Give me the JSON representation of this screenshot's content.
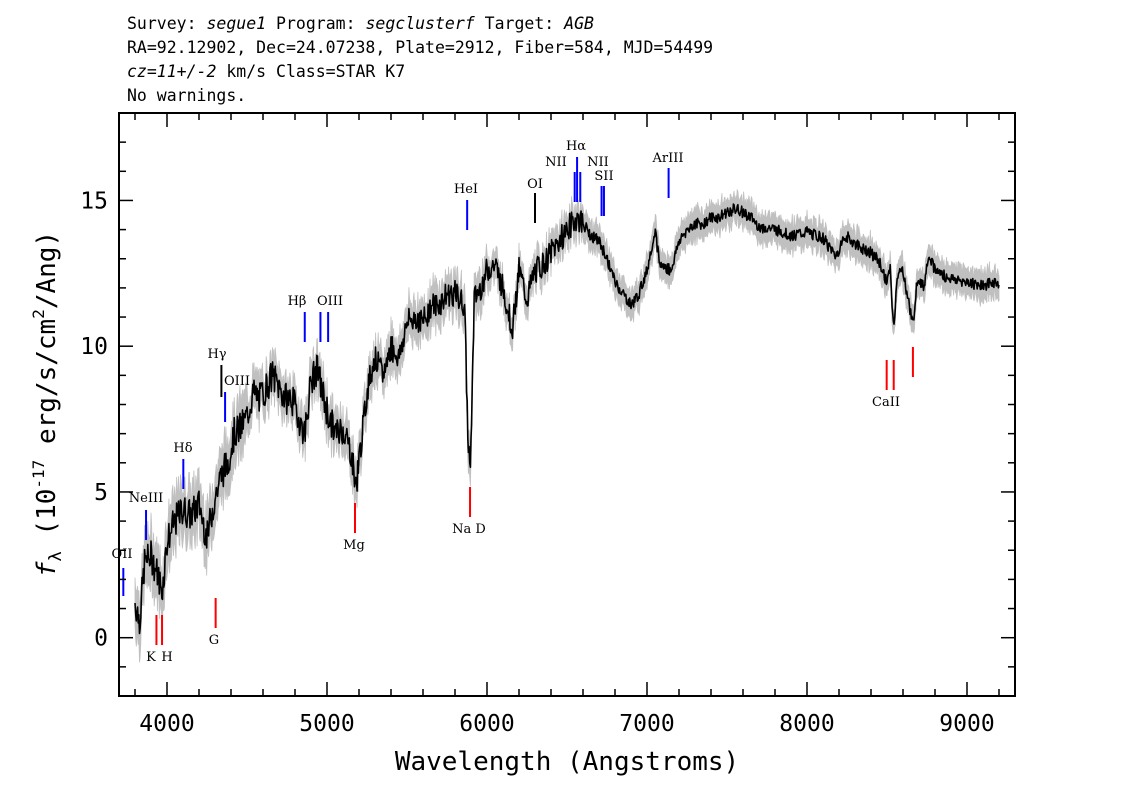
{
  "header": {
    "survey_label": "Survey:",
    "survey": "segue1",
    "program_label": "Program:",
    "program": "segclusterf",
    "target_label": "Target:",
    "target": "AGB",
    "line2": "RA=92.12902, Dec=24.07238, Plate=2912, Fiber=584, MJD=54499",
    "cz": "cz=11+/-2",
    "cz_rest": " km/s Class=STAR K7",
    "warnings": "No warnings."
  },
  "chart_data": {
    "type": "line",
    "xlabel": "Wavelength (Angstroms)",
    "ylabel": "f_λ (10^-17 erg/s/cm^2/Ang)",
    "xlim": [
      3700,
      9300
    ],
    "ylim": [
      -2,
      18.0
    ],
    "xticks": [
      4000,
      5000,
      6000,
      7000,
      8000,
      9000
    ],
    "yticks": [
      0,
      5,
      10,
      15
    ],
    "colors": {
      "flux": "#000000",
      "error": "#c0c0c0",
      "emission": "#0000ff",
      "absorption": "#ff0000",
      "sky": "#000000"
    },
    "series": [
      {
        "values": [
          [
            3800,
            1.2
          ],
          [
            3830,
            0.6
          ],
          [
            3860,
            2.6
          ],
          [
            3900,
            2.8
          ],
          [
            3940,
            2.2
          ],
          [
            3970,
            1.6
          ],
          [
            4000,
            3.3
          ],
          [
            4050,
            4.0
          ],
          [
            4100,
            4.4
          ],
          [
            4150,
            4.2
          ],
          [
            4200,
            4.6
          ],
          [
            4250,
            3.4
          ],
          [
            4280,
            4.3
          ],
          [
            4300,
            4.8
          ],
          [
            4340,
            5.6
          ],
          [
            4380,
            6.0
          ],
          [
            4420,
            7.0
          ],
          [
            4460,
            7.2
          ],
          [
            4500,
            7.6
          ],
          [
            4540,
            8.4
          ],
          [
            4580,
            8.2
          ],
          [
            4620,
            8.6
          ],
          [
            4660,
            9.0
          ],
          [
            4700,
            8.6
          ],
          [
            4740,
            8.2
          ],
          [
            4780,
            8.2
          ],
          [
            4820,
            7.6
          ],
          [
            4860,
            7.0
          ],
          [
            4900,
            8.8
          ],
          [
            4940,
            9.2
          ],
          [
            4980,
            8.2
          ],
          [
            5020,
            7.4
          ],
          [
            5060,
            7.0
          ],
          [
            5100,
            7.2
          ],
          [
            5150,
            6.4
          ],
          [
            5180,
            5.2
          ],
          [
            5220,
            7.0
          ],
          [
            5260,
            8.8
          ],
          [
            5300,
            9.6
          ],
          [
            5350,
            9.0
          ],
          [
            5400,
            10.0
          ],
          [
            5450,
            9.6
          ],
          [
            5500,
            10.8
          ],
          [
            5550,
            11.0
          ],
          [
            5600,
            10.8
          ],
          [
            5650,
            11.4
          ],
          [
            5700,
            11.4
          ],
          [
            5750,
            11.8
          ],
          [
            5800,
            11.8
          ],
          [
            5860,
            11.4
          ],
          [
            5880,
            7.0
          ],
          [
            5893,
            5.8
          ],
          [
            5905,
            7.8
          ],
          [
            5920,
            11.6
          ],
          [
            5960,
            12.0
          ],
          [
            6000,
            12.6
          ],
          [
            6050,
            12.8
          ],
          [
            6100,
            12.0
          ],
          [
            6160,
            10.6
          ],
          [
            6200,
            12.6
          ],
          [
            6250,
            11.6
          ],
          [
            6300,
            12.6
          ],
          [
            6350,
            12.8
          ],
          [
            6400,
            13.2
          ],
          [
            6450,
            13.6
          ],
          [
            6500,
            14.0
          ],
          [
            6560,
            14.4
          ],
          [
            6600,
            14.2
          ],
          [
            6650,
            13.8
          ],
          [
            6700,
            13.6
          ],
          [
            6750,
            13.0
          ],
          [
            6800,
            12.2
          ],
          [
            6850,
            11.8
          ],
          [
            6900,
            11.4
          ],
          [
            6950,
            11.8
          ],
          [
            7000,
            12.6
          ],
          [
            7050,
            14.0
          ],
          [
            7080,
            12.8
          ],
          [
            7150,
            12.6
          ],
          [
            7200,
            13.6
          ],
          [
            7250,
            14.0
          ],
          [
            7300,
            14.2
          ],
          [
            7350,
            14.2
          ],
          [
            7400,
            14.4
          ],
          [
            7450,
            14.4
          ],
          [
            7500,
            14.6
          ],
          [
            7550,
            14.7
          ],
          [
            7600,
            14.6
          ],
          [
            7650,
            14.4
          ],
          [
            7700,
            14.1
          ],
          [
            7800,
            14.0
          ],
          [
            7900,
            13.8
          ],
          [
            8000,
            13.9
          ],
          [
            8100,
            13.7
          ],
          [
            8180,
            13.1
          ],
          [
            8240,
            13.8
          ],
          [
            8300,
            13.5
          ],
          [
            8400,
            13.2
          ],
          [
            8450,
            12.9
          ],
          [
            8498,
            12.2
          ],
          [
            8520,
            12.6
          ],
          [
            8542,
            10.5
          ],
          [
            8562,
            12.4
          ],
          [
            8600,
            12.6
          ],
          [
            8662,
            10.7
          ],
          [
            8690,
            12.4
          ],
          [
            8730,
            12.0
          ],
          [
            8760,
            13.2
          ],
          [
            8800,
            12.6
          ],
          [
            8900,
            12.3
          ],
          [
            9000,
            12.2
          ],
          [
            9100,
            12.1
          ],
          [
            9200,
            12.2
          ]
        ]
      }
    ],
    "lines": [
      {
        "label": "OII",
        "wave": 3727,
        "kind": "emission"
      },
      {
        "label": "NeIII",
        "wave": 3869,
        "kind": "emission"
      },
      {
        "label": "Hδ",
        "wave": 4102,
        "kind": "emission"
      },
      {
        "label": "Hγ",
        "wave": 4340,
        "kind": "sky"
      },
      {
        "label": "OIII",
        "wave": 4363,
        "kind": "emission"
      },
      {
        "label": "Hβ",
        "wave": 4861,
        "kind": "emission"
      },
      {
        "label": "OIII",
        "wave": 4959,
        "kind": "emission"
      },
      {
        "label": "",
        "wave": 5007,
        "kind": "emission"
      },
      {
        "label": "HeI",
        "wave": 5876,
        "kind": "emission"
      },
      {
        "label": "OI",
        "wave": 6300,
        "kind": "sky"
      },
      {
        "label": "NII",
        "wave": 6548,
        "kind": "emission"
      },
      {
        "label": "Hα",
        "wave": 6563,
        "kind": "emission"
      },
      {
        "label": "NII",
        "wave": 6583,
        "kind": "emission"
      },
      {
        "label": "SII",
        "wave": 6716,
        "kind": "emission"
      },
      {
        "label": "",
        "wave": 6731,
        "kind": "emission"
      },
      {
        "label": "ArIII",
        "wave": 7135,
        "kind": "emission"
      },
      {
        "label": "K",
        "wave": 3934,
        "kind": "absorption"
      },
      {
        "label": "H",
        "wave": 3969,
        "kind": "absorption"
      },
      {
        "label": "G",
        "wave": 4304,
        "kind": "absorption"
      },
      {
        "label": "Mg",
        "wave": 5175,
        "kind": "absorption"
      },
      {
        "label": "Na D",
        "wave": 5894,
        "kind": "absorption"
      },
      {
        "label": "CaII",
        "wave": 8498,
        "kind": "absorption"
      },
      {
        "label": "",
        "wave": 8542,
        "kind": "absorption"
      },
      {
        "label": "",
        "wave": 8662,
        "kind": "absorption"
      }
    ]
  }
}
